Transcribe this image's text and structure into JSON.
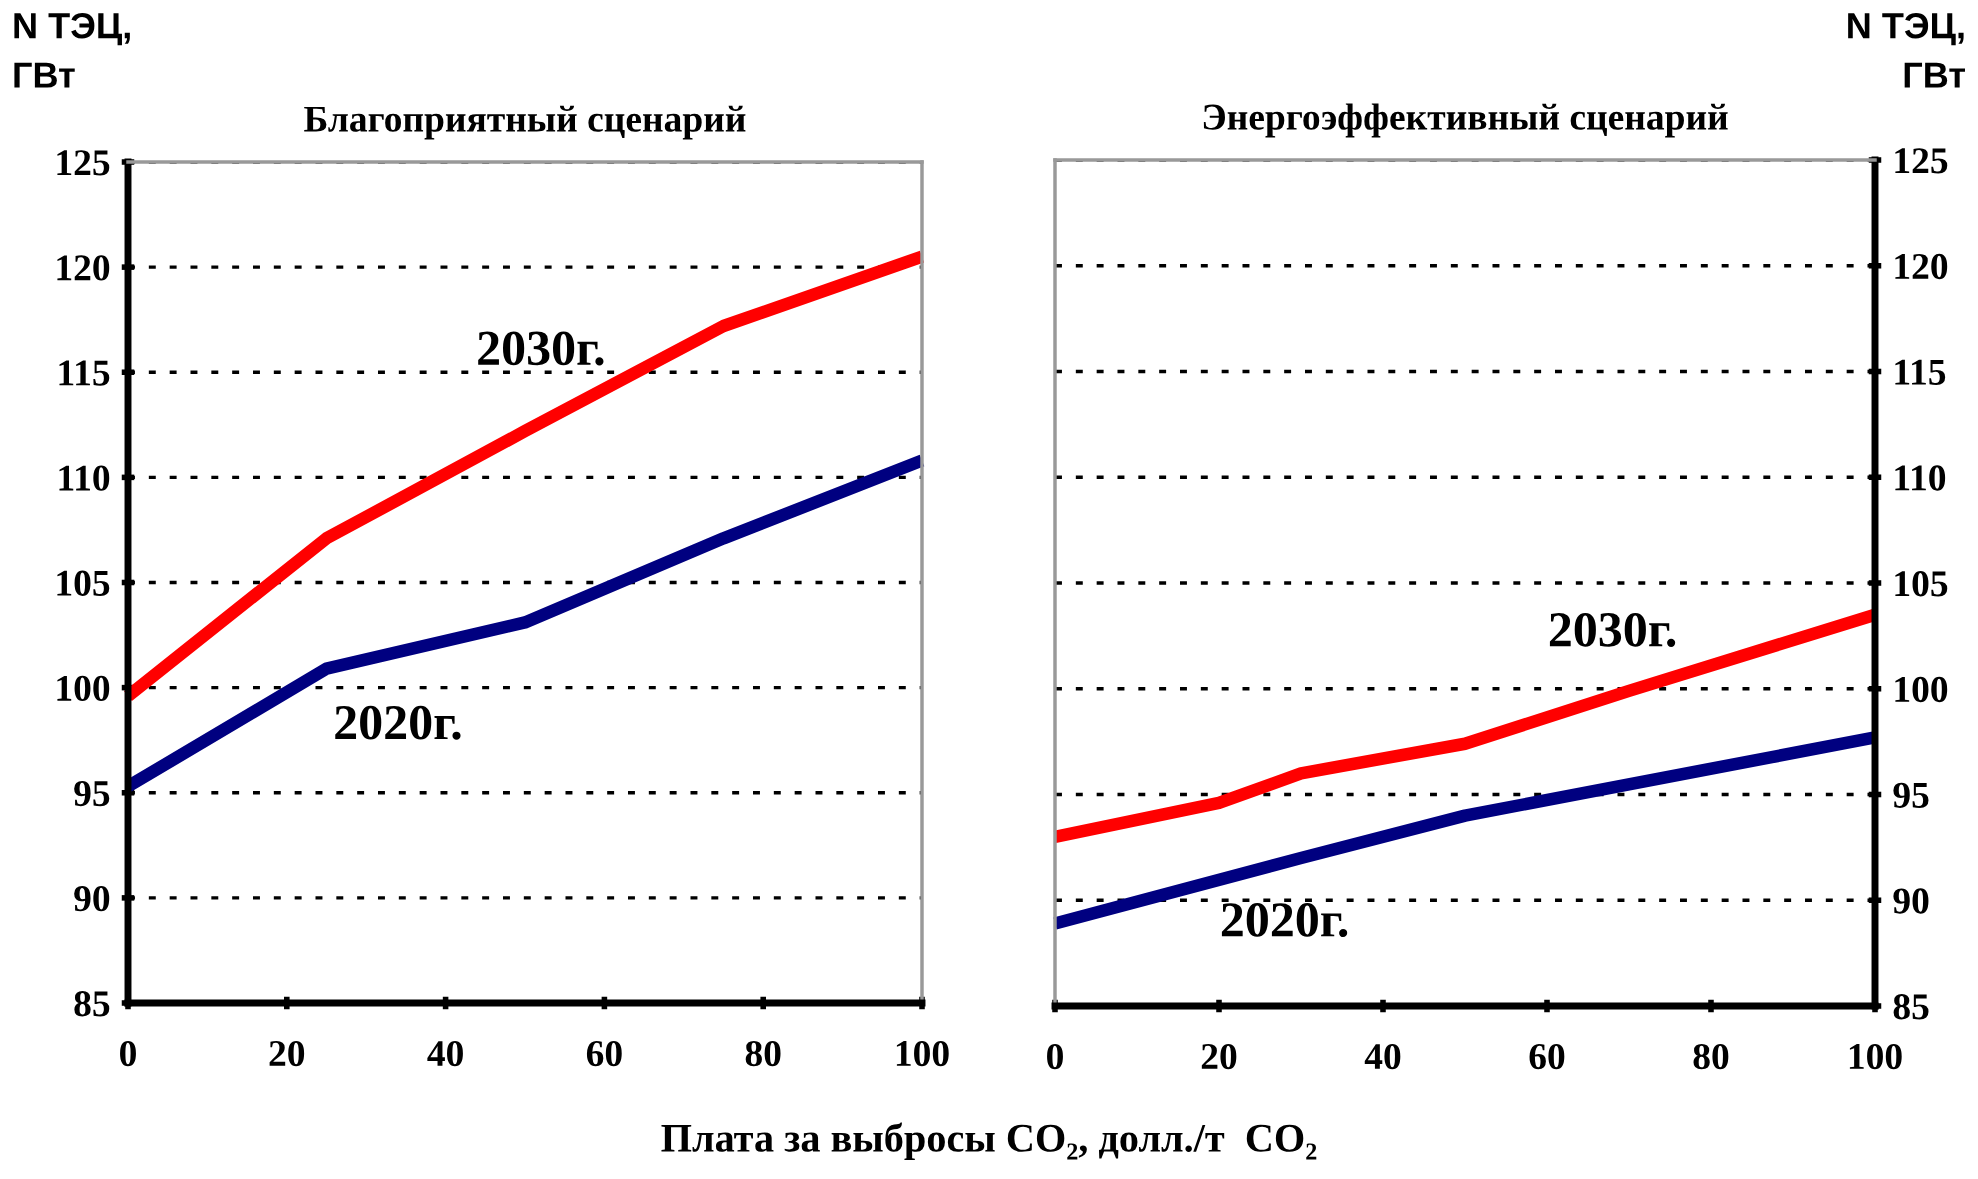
{
  "chart_data": [
    {
      "type": "line",
      "title": "Благоприятный сценарий",
      "ylabel": "N ТЭЦ,\nГВт",
      "xlabel": "Плата за выбросы CO₂, долл./т  CO₂",
      "x": [
        0,
        25,
        50,
        75,
        100
      ],
      "series": [
        {
          "name": "2030г.",
          "color": "#ff0000",
          "values": [
            99.6,
            107.1,
            112.2,
            117.2,
            120.5
          ]
        },
        {
          "name": "2020г.",
          "color": "#000080",
          "values": [
            95.3,
            100.9,
            103.1,
            107.1,
            110.8
          ]
        }
      ],
      "xlim": [
        0,
        100
      ],
      "xticks": [
        0,
        20,
        40,
        60,
        80,
        100
      ],
      "ylim": [
        85,
        125
      ],
      "yticks": [
        85,
        90,
        95,
        100,
        105,
        110,
        115,
        120,
        125
      ],
      "grid": "y",
      "line_style": "solid"
    },
    {
      "type": "line",
      "title": "Энергоэффективный сценарий",
      "ylabel": "N ТЭЦ,\nГВт",
      "series": [
        {
          "name": "2030г.",
          "color": "#ff0000",
          "x": [
            0,
            20,
            30,
            50,
            70,
            100
          ],
          "values": [
            93.0,
            94.6,
            96.0,
            97.4,
            99.9,
            103.5
          ]
        },
        {
          "name": "2020г.",
          "color": "#000080",
          "x": [
            0,
            30,
            50,
            100
          ],
          "values": [
            88.9,
            92.0,
            94.0,
            97.7
          ]
        }
      ],
      "xlim": [
        0,
        100
      ],
      "xticks": [
        0,
        20,
        40,
        60,
        80,
        100
      ],
      "ylim": [
        85,
        125
      ],
      "yticks": [
        85,
        90,
        95,
        100,
        105,
        110,
        115,
        120,
        125
      ],
      "grid": "y",
      "line_style": "solid"
    }
  ]
}
